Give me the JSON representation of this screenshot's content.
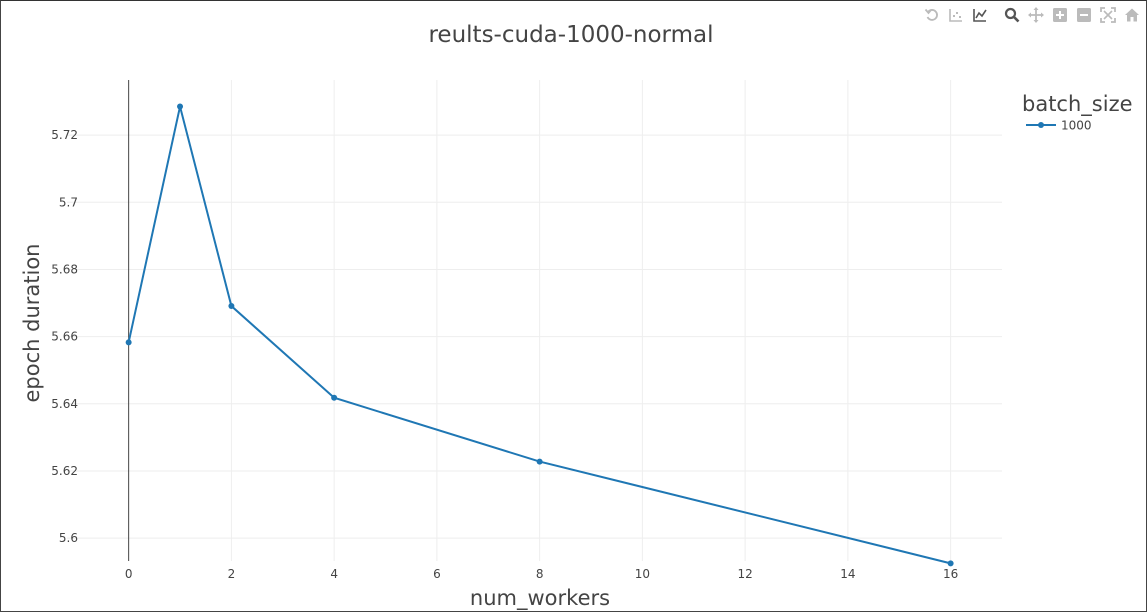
{
  "toolbar": {
    "icons": [
      "undo-icon",
      "compare-points-icon",
      "spike-lines-icon",
      "zoom-icon",
      "pan-icon",
      "zoom-in-icon",
      "zoom-out-icon",
      "autoscale-icon",
      "reset-axes-icon"
    ]
  },
  "chart_data": {
    "type": "line",
    "title": "reults-cuda-1000-normal",
    "xlabel": "num_workers",
    "ylabel": "epoch duration",
    "legend_title": "batch_size",
    "legend_position": "top-right",
    "grid": true,
    "xlim": [
      -1.2,
      17
    ],
    "ylim": [
      5.5932,
      5.7364
    ],
    "x_ticks": [
      0,
      2,
      4,
      6,
      8,
      10,
      12,
      14,
      16
    ],
    "x_tick_labels": [
      "0",
      "2",
      "4",
      "6",
      "8",
      "10",
      "12",
      "14",
      "16"
    ],
    "y_ticks": [
      5.6,
      5.62,
      5.64,
      5.66,
      5.68,
      5.7,
      5.72
    ],
    "y_tick_labels": [
      "5.6",
      "5.62",
      "5.64",
      "5.66",
      "5.68",
      "5.7",
      "5.72"
    ],
    "series": [
      {
        "name": "1000",
        "color": "#1f77b4",
        "x": [
          0,
          1,
          2,
          4,
          8,
          16
        ],
        "y": [
          5.6583,
          5.7285,
          5.6691,
          5.6418,
          5.6228,
          5.5925
        ]
      }
    ]
  }
}
